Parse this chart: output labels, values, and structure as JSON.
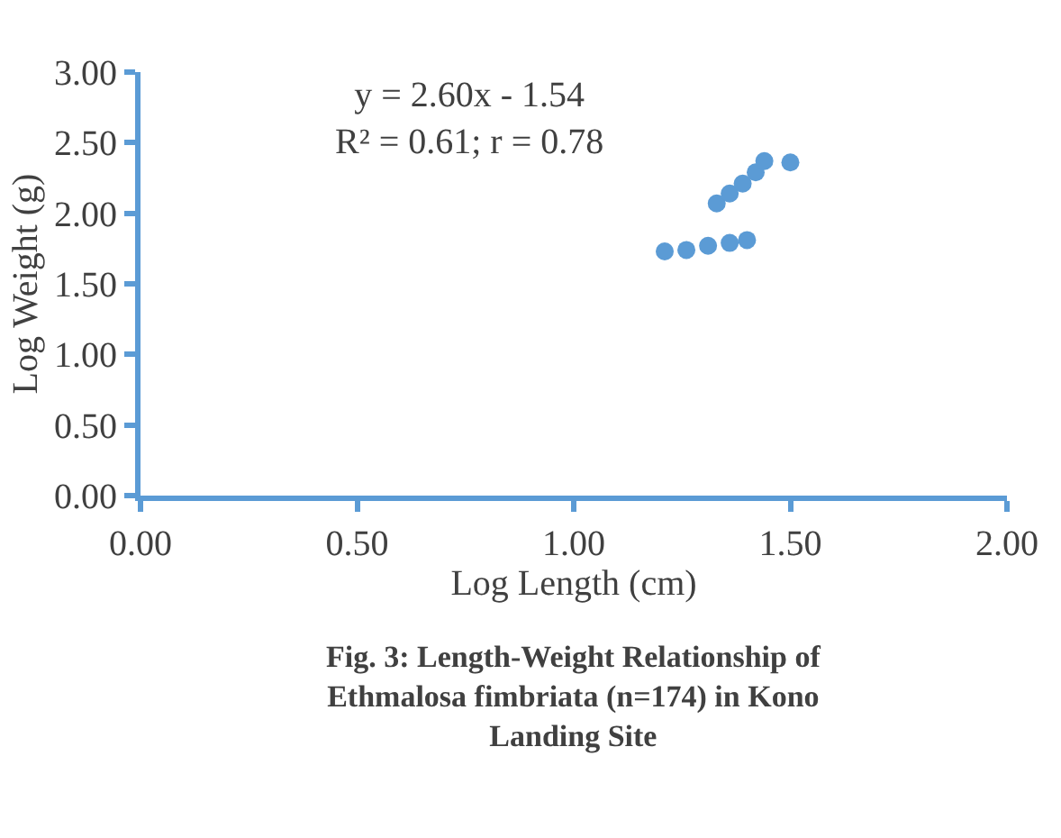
{
  "chart_data": {
    "type": "scatter",
    "title": "Fig. 3: Length-Weight Relationship of Ethmalosa fimbriata (n=174) in Kono Landing Site",
    "xlabel": "Log Length (cm)",
    "ylabel": "Log Weight (g)",
    "annotations": [
      "y = 2.60x - 1.54\nR² = 0.61; r = 0.78"
    ],
    "series": [
      {
        "color": "#5b9bd5",
        "x": [
          1.21,
          1.26,
          1.31,
          1.36,
          1.4,
          1.33,
          1.36,
          1.39,
          1.42,
          1.44,
          1.5
        ],
        "values": [
          1.73,
          1.74,
          1.77,
          1.79,
          1.81,
          2.07,
          2.14,
          2.21,
          2.29,
          2.37,
          2.36
        ]
      }
    ],
    "xlim": [
      0,
      2
    ],
    "xticks": [
      {
        "value": 0,
        "label": "0.00"
      },
      {
        "value": 0.5,
        "label": "0.50"
      },
      {
        "value": 1,
        "label": "1.00"
      },
      {
        "value": 1.5,
        "label": "1.50"
      },
      {
        "value": 2,
        "label": "2.00"
      }
    ],
    "ylim": [
      0,
      3
    ],
    "yticks": [
      {
        "value": 0,
        "label": "0.00"
      },
      {
        "value": 0.5,
        "label": "0.50"
      },
      {
        "value": 1,
        "label": "1.00"
      },
      {
        "value": 1.5,
        "label": "1.50"
      },
      {
        "value": 2,
        "label": "2.00"
      },
      {
        "value": 2.5,
        "label": "2.50"
      },
      {
        "value": 3,
        "label": "3.00"
      }
    ],
    "marker": "circle"
  }
}
